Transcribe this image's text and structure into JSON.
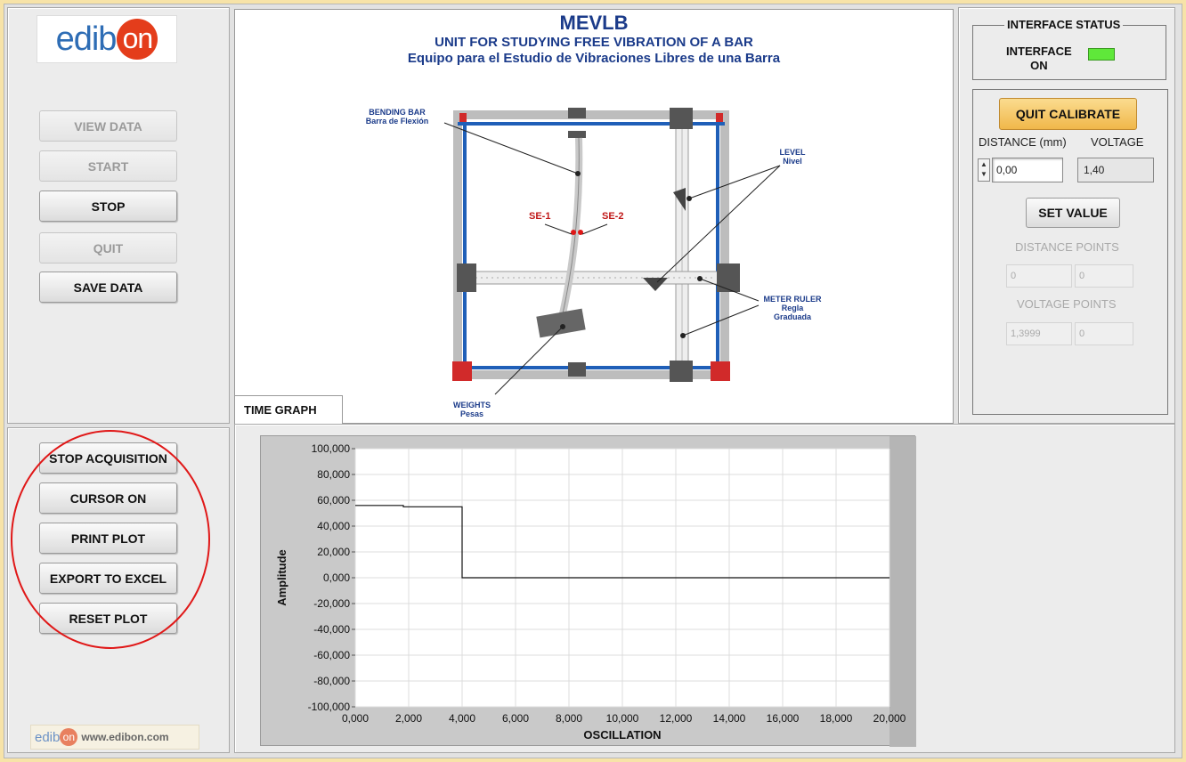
{
  "header": {
    "title": "MEVLB",
    "subtitle_en": "UNIT FOR STUDYING FREE VIBRATION OF A BAR",
    "subtitle_es": "Equipo para el Estudio de Vibraciones Libres de una Barra"
  },
  "logo": {
    "brand_prefix": "edib",
    "brand_suffix": "on",
    "footer_url": "www.edibon.com"
  },
  "left_buttons": [
    {
      "label": "VIEW DATA",
      "enabled": false
    },
    {
      "label": "START",
      "enabled": false
    },
    {
      "label": "STOP",
      "enabled": true
    },
    {
      "label": "QUIT",
      "enabled": false
    },
    {
      "label": "SAVE DATA",
      "enabled": true
    }
  ],
  "plot_buttons": [
    "STOP ACQUISITION",
    "CURSOR ON",
    "PRINT PLOT",
    "EXPORT TO EXCEL",
    "RESET PLOT"
  ],
  "diagram_labels": {
    "bending_bar": "BENDING BAR",
    "bending_bar_es": "Barra de Flexión",
    "level": "LEVEL",
    "level_es": "Nivel",
    "se1": "SE-1",
    "se2": "SE-2",
    "meter_ruler": "METER RULER",
    "meter_ruler_es1": "Regla",
    "meter_ruler_es2": "Graduada",
    "weights": "WEIGHTS",
    "weights_es": "Pesas"
  },
  "tab": {
    "label": "TIME GRAPH"
  },
  "interface_status": {
    "title": "INTERFACE STATUS",
    "label_line1": "INTERFACE",
    "label_line2": "ON",
    "led_color": "#5fe83a"
  },
  "calibration": {
    "quit_calibrate_label": "QUIT CALIBRATE",
    "distance_label": "DISTANCE (mm)",
    "voltage_label": "VOLTAGE",
    "distance_value": "0,00",
    "voltage_value": "1,40",
    "set_value_label": "SET VALUE",
    "distance_points_label": "DISTANCE POINTS",
    "distance_points": [
      "0",
      "0"
    ],
    "voltage_points_label": "VOLTAGE POINTS",
    "voltage_points": [
      "1,3999",
      "0"
    ]
  },
  "chart_data": {
    "type": "line",
    "xlabel": "OSCILLATION",
    "ylabel": "Amplitude",
    "xlim": [
      0,
      20
    ],
    "ylim": [
      -100,
      100
    ],
    "x_ticks": [
      "0,000",
      "2,000",
      "4,000",
      "6,000",
      "8,000",
      "10,000",
      "12,000",
      "14,000",
      "16,000",
      "18,000",
      "20,000"
    ],
    "y_ticks": [
      "100,000",
      "80,000",
      "60,000",
      "40,000",
      "20,000",
      "0,000",
      "-20,000",
      "-40,000",
      "-60,000",
      "-80,000",
      "-100,000"
    ],
    "grid": true,
    "series": [
      {
        "x": [
          0,
          1.8,
          1.8,
          4,
          4,
          20
        ],
        "y": [
          56,
          56,
          55,
          55,
          0,
          0
        ]
      }
    ]
  },
  "colors": {
    "background": "#f7e3a8",
    "highlight_button": "#f5c866",
    "title_blue": "#1b3b8a",
    "annotation_red": "#e01818"
  }
}
